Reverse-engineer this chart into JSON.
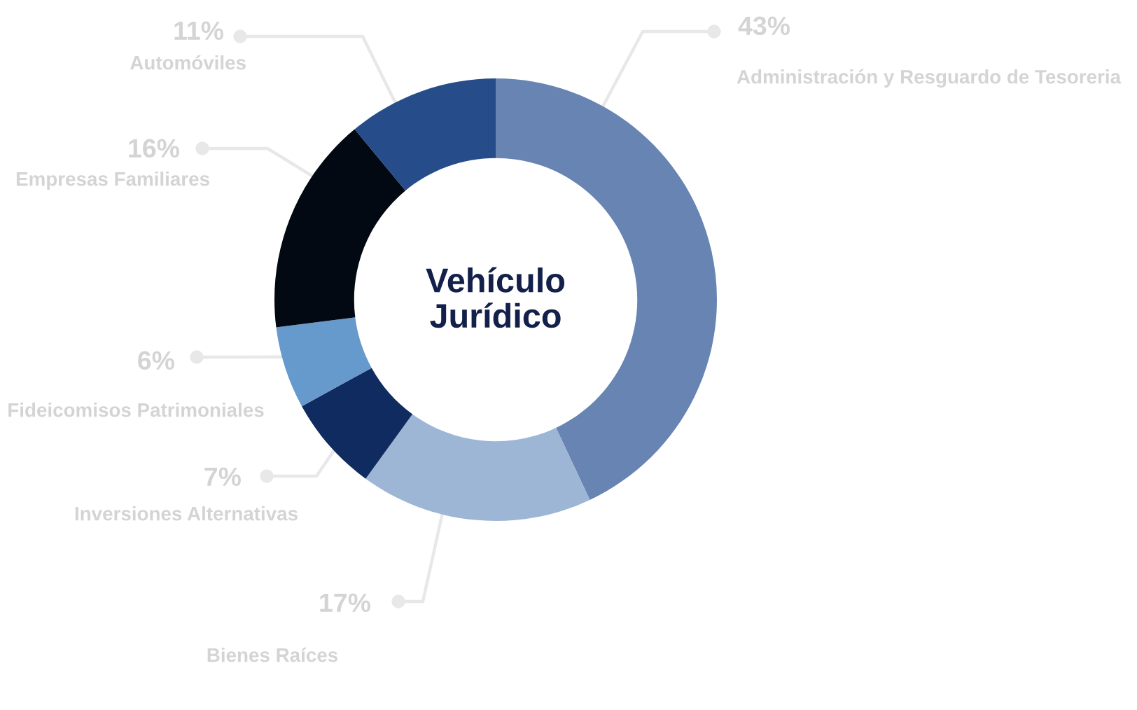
{
  "chart_data": {
    "type": "donut",
    "title": "Vehículo\nJurídico",
    "categories": [
      "Administración y Resguardo de Tesoreria",
      "Bienes Raíces",
      "Inversiones Alternativas",
      "Fideicomisos Patrimoniales",
      "Empresas Familiares",
      "Automóviles"
    ],
    "values": [
      43,
      17,
      7,
      6,
      16,
      11
    ],
    "colors": [
      "#6784b2",
      "#9db6d6",
      "#102b60",
      "#6699cc",
      "#020912",
      "#264c8a"
    ],
    "value_labels": [
      "43%",
      "17%",
      "7%",
      "6%",
      "16%",
      "11%"
    ]
  }
}
